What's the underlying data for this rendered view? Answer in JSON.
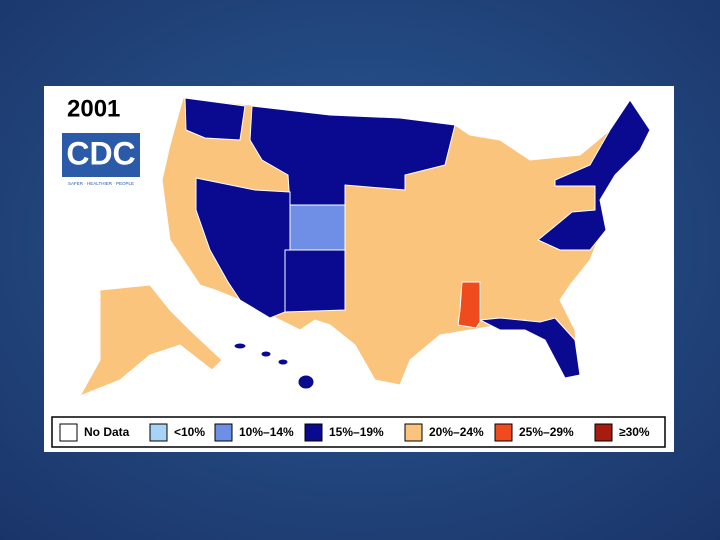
{
  "title": "2001",
  "logo": {
    "text": "CDC",
    "tagline": "SAFER · HEALTHIER · PEOPLE"
  },
  "legend": [
    {
      "label": "No Data",
      "color": "#ffffff"
    },
    {
      "label": "<10%",
      "color": "#a9d3f5"
    },
    {
      "label": "10%–14%",
      "color": "#6f8fe6"
    },
    {
      "label": "15%–19%",
      "color": "#0a0a90"
    },
    {
      "label": "20%–24%",
      "color": "#fbc47c"
    },
    {
      "label": "25%–29%",
      "color": "#ef4b1f"
    },
    {
      "label": "≥30%",
      "color": "#a81c10"
    }
  ]
}
